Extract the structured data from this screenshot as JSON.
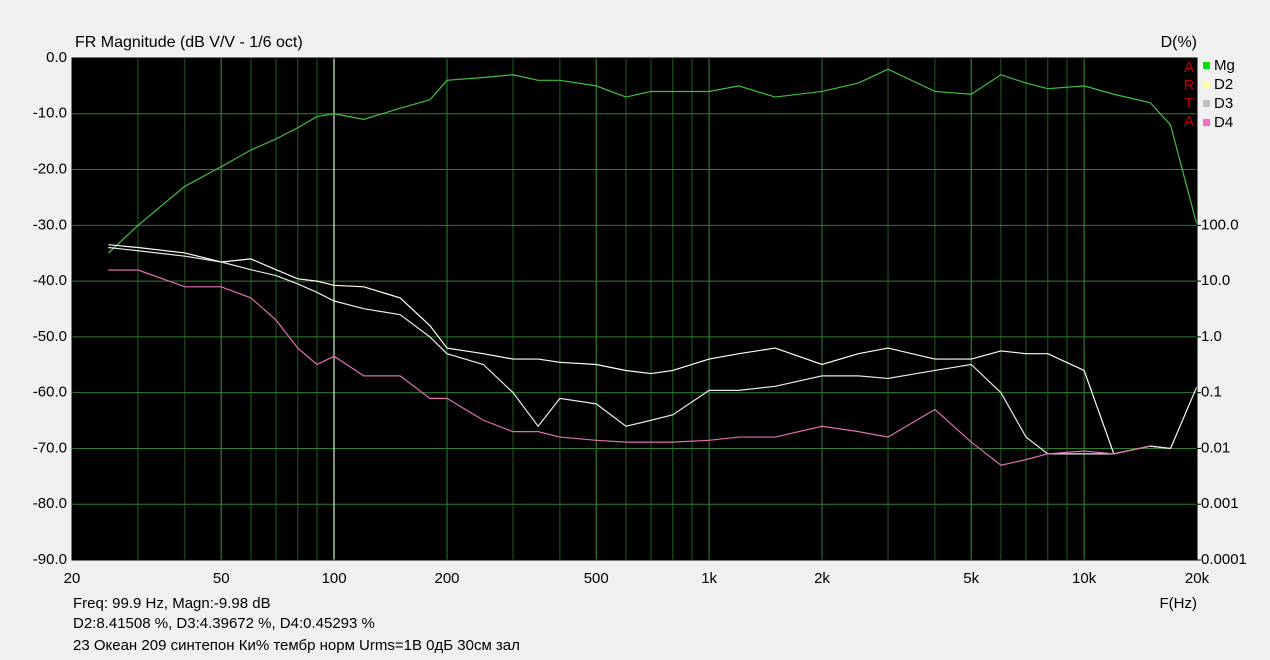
{
  "chart_data": {
    "type": "line",
    "title": "FR Magnitude (dB V/V - 1/6 oct)",
    "y2_label": "D(%)",
    "x_label": "F(Hz)",
    "logo": [
      "A",
      "R",
      "T",
      "A"
    ],
    "readout": [
      "Freq: 99.9 Hz, Magn:-9.98 dB",
      "D2:8.41508 %, D3:4.39672 %, D4:0.45293 %",
      "23 Океан 209 синтепон Ки% тембр норм Urms=1В 0дБ 30см зал"
    ],
    "cursor": 99.9,
    "xlog": true,
    "y2log": true,
    "grid": true,
    "minor_grid": true,
    "legend": "top-right",
    "xlim": [
      20,
      20000
    ],
    "xticks": [
      20,
      50,
      100,
      200,
      500,
      {
        "value": 1000,
        "label": "1k"
      },
      {
        "value": 2000,
        "label": "2k"
      },
      {
        "value": 5000,
        "label": "5k"
      },
      {
        "value": 10000,
        "label": "10k"
      },
      {
        "value": 20000,
        "label": "20k"
      }
    ],
    "ylim": [
      -90,
      0
    ],
    "yticks": [
      {
        "value": 0,
        "label": "0.0"
      },
      {
        "value": -10,
        "label": "-10.0"
      },
      {
        "value": -20,
        "label": "-20.0"
      },
      {
        "value": -30,
        "label": "-30.0"
      },
      {
        "value": -40,
        "label": "-40.0"
      },
      {
        "value": -50,
        "label": "-50.0"
      },
      {
        "value": -60,
        "label": "-60.0"
      },
      {
        "value": -70,
        "label": "-70.0"
      },
      {
        "value": -80,
        "label": "-80.0"
      },
      {
        "value": -90,
        "label": "-90.0"
      }
    ],
    "y2lim": [
      0.0001,
      100000
    ],
    "y2ticks": [
      {
        "value": 100,
        "label": "100.0"
      },
      {
        "value": 10,
        "label": "10.0"
      },
      {
        "value": 1,
        "label": "1.0"
      },
      0.1,
      0.01,
      0.001,
      0.0001
    ],
    "x": [
      25,
      30,
      40,
      50,
      60,
      70,
      80,
      90,
      100,
      120,
      150,
      180,
      200,
      250,
      300,
      350,
      400,
      500,
      600,
      700,
      800,
      1000,
      1200,
      1500,
      2000,
      2500,
      3000,
      4000,
      5000,
      6000,
      7000,
      8000,
      10000,
      12000,
      15000,
      17000,
      20000
    ],
    "series": [
      {
        "name": "Mg",
        "color": "#00e000",
        "line_color": "#40c040",
        "values": [
          -35,
          -30,
          -23,
          -19.5,
          -16.5,
          -14.5,
          -12.5,
          -10.5,
          -10,
          -11,
          -9,
          -7.5,
          -4,
          -3.5,
          -3,
          -4,
          -4,
          -5,
          -7,
          -6,
          -6,
          -6,
          -5,
          -7,
          -6,
          -4.5,
          -2,
          -6,
          -6.5,
          -3,
          -4.5,
          -5.5,
          -5,
          -6.5,
          -8,
          -12,
          -30
        ]
      },
      {
        "name": "D2",
        "color": "#ffff99",
        "line_color": "#fffff0",
        "axis": "y2",
        "values": [
          45,
          40,
          32,
          22,
          25,
          16,
          11,
          10,
          8.4,
          7.9,
          5,
          1.6,
          0.63,
          0.5,
          0.4,
          0.4,
          0.35,
          0.32,
          0.25,
          0.22,
          0.25,
          0.4,
          0.5,
          0.63,
          0.32,
          0.5,
          0.63,
          0.4,
          0.4,
          0.56,
          0.5,
          0.5,
          0.25,
          0.008,
          0.011,
          0.01,
          0.13
        ]
      },
      {
        "name": "D3",
        "color": "#c0c0c0",
        "line_color": "#e8e8e8",
        "axis": "y2",
        "values": [
          40,
          35,
          28,
          22,
          16,
          12.6,
          8.9,
          6.3,
          4.4,
          3.2,
          2.5,
          1,
          0.5,
          0.32,
          0.1,
          0.025,
          0.079,
          0.063,
          0.025,
          0.032,
          0.04,
          0.11,
          0.11,
          0.13,
          0.2,
          0.2,
          0.18,
          0.25,
          0.32,
          0.1,
          0.016,
          0.008,
          0.008,
          0.008,
          0.011,
          0.01,
          null
        ]
      },
      {
        "name": "D4",
        "color": "#ff66cc",
        "line_color": "#e070b0",
        "axis": "y2",
        "values": [
          15.8,
          15.8,
          7.9,
          7.9,
          5,
          2,
          0.63,
          0.32,
          0.45,
          0.2,
          0.2,
          0.079,
          0.079,
          0.032,
          0.02,
          0.02,
          0.016,
          0.014,
          0.013,
          0.013,
          0.013,
          0.014,
          0.016,
          0.016,
          0.025,
          0.02,
          0.016,
          0.05,
          0.013,
          0.005,
          0.0063,
          0.008,
          0.009,
          0.008,
          0.011,
          null,
          null
        ]
      }
    ]
  }
}
